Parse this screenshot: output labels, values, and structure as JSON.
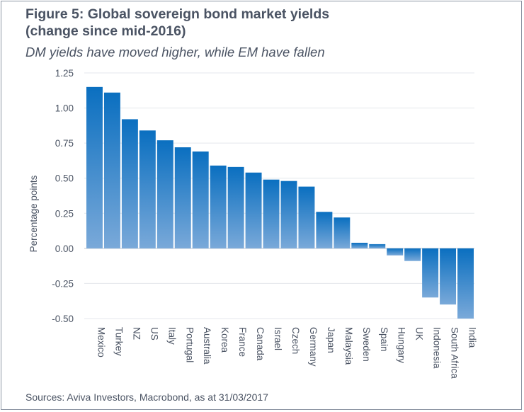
{
  "figure": {
    "title_line1": "Figure 5: Global sovereign bond market yields",
    "title_line2": "(change since mid-2016)",
    "subtitle": "DM yields have moved higher, while EM have fallen",
    "source": "Sources: Aviva Investors, Macrobond, as at 31/03/2017"
  },
  "colors": {
    "bar_top": "#0a6fc0",
    "bar_bottom": "#7aa9d9",
    "text": "#4a5363",
    "gridline": "#e4e7ec",
    "zero_line": "#c9cfd8"
  },
  "chart_data": {
    "type": "bar",
    "ylabel": "Percentage points",
    "xlabel": "",
    "ylim": [
      -0.5,
      1.25
    ],
    "yticks": [
      "1.25",
      "1.00",
      "0.75",
      "0.50",
      "0.25",
      "0.00",
      "-0.25",
      "-0.50"
    ],
    "ytick_values": [
      1.25,
      1.0,
      0.75,
      0.5,
      0.25,
      0.0,
      -0.25,
      -0.5
    ],
    "grid": true,
    "categories": [
      "Mexico",
      "Turkey",
      "NZ",
      "US",
      "Italy",
      "Portugal",
      "Australia",
      "Korea",
      "France",
      "Canada",
      "Israel",
      "Czech",
      "Germany",
      "Japan",
      "Malaysia",
      "Sweden",
      "Spain",
      "Hungary",
      "UK",
      "Indonesia",
      "South Africa",
      "India"
    ],
    "values": [
      1.15,
      1.11,
      0.92,
      0.84,
      0.77,
      0.72,
      0.69,
      0.59,
      0.58,
      0.54,
      0.49,
      0.48,
      0.44,
      0.26,
      0.22,
      0.04,
      0.03,
      -0.05,
      -0.09,
      -0.35,
      -0.4,
      -0.5
    ]
  }
}
